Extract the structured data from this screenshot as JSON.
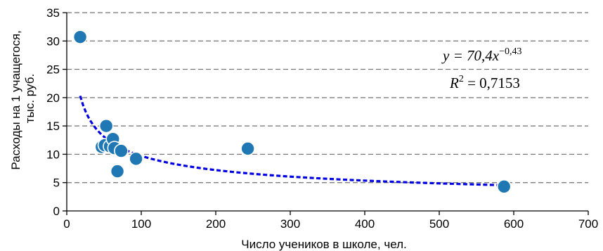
{
  "chart_data": {
    "type": "scatter",
    "xlabel": "Число учеников в школе, чел.",
    "ylabel": [
      "Расходы на 1 учащегося,",
      "тыс. руб."
    ],
    "xlim": [
      0,
      700
    ],
    "ylim": [
      0,
      35
    ],
    "x_ticks": [
      0,
      100,
      200,
      300,
      400,
      500,
      600,
      700
    ],
    "y_ticks": [
      0,
      5,
      10,
      15,
      20,
      25,
      30,
      35
    ],
    "grid": "horizontal dashed",
    "series": [
      {
        "type": "scatter",
        "color": "#1f77b4",
        "points": [
          {
            "x": 18,
            "y": 30.7
          },
          {
            "x": 47,
            "y": 11.3
          },
          {
            "x": 51,
            "y": 11.6
          },
          {
            "x": 53,
            "y": 15.0
          },
          {
            "x": 58,
            "y": 11.4
          },
          {
            "x": 62,
            "y": 12.7
          },
          {
            "x": 64,
            "y": 11.1
          },
          {
            "x": 68,
            "y": 7.0
          },
          {
            "x": 73,
            "y": 10.6
          },
          {
            "x": 93,
            "y": 9.2
          },
          {
            "x": 243,
            "y": 11.0
          },
          {
            "x": 587,
            "y": 4.3
          }
        ]
      }
    ],
    "trendline": {
      "type": "power",
      "a": 70.4,
      "b": -0.43,
      "x_range": [
        18,
        587
      ],
      "color": "#0000e0",
      "style": "dashed"
    },
    "annotations": {
      "equation_prefix": "y = 70,4",
      "equation_var": "x",
      "equation_exp": "−0,43",
      "r2_prefix": "R",
      "r2_exp": "2",
      "r2_value": " = 0,7153"
    }
  }
}
